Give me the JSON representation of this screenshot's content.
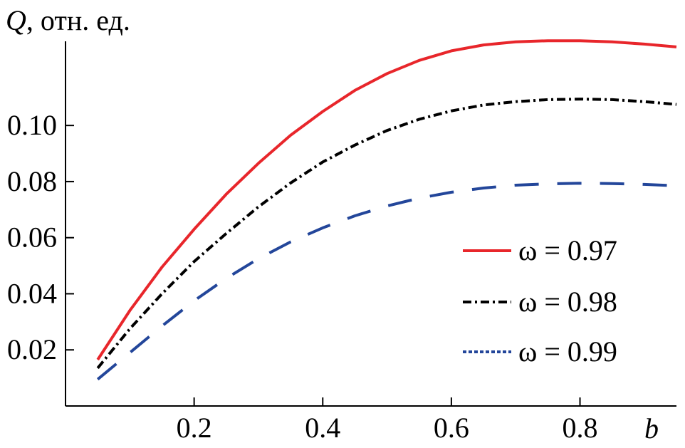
{
  "chart_data": {
    "type": "line",
    "title": "",
    "ylabel_symbol": "Q",
    "ylabel_unit": ", отн. ед.",
    "xlabel": "b",
    "x_ticks": [
      0.2,
      0.4,
      0.6,
      0.8
    ],
    "x_tick_labels": [
      "0.2",
      "0.4",
      "0.6",
      "0.8"
    ],
    "y_ticks": [
      0.02,
      0.04,
      0.06,
      0.08,
      0.1
    ],
    "y_tick_labels": [
      "0.02",
      "0.04",
      "0.06",
      "0.08",
      "0.10"
    ],
    "xlim": [
      0.0,
      0.95
    ],
    "ylim": [
      0.0,
      0.13
    ],
    "grid": false,
    "legend_position": "right",
    "x": [
      0.05,
      0.1,
      0.15,
      0.2,
      0.25,
      0.3,
      0.35,
      0.4,
      0.45,
      0.5,
      0.55,
      0.6,
      0.65,
      0.7,
      0.75,
      0.8,
      0.85,
      0.9,
      0.95
    ],
    "series": [
      {
        "name": "ω = 0.97",
        "color": "#e8262b",
        "style": "solid",
        "values": [
          0.0165,
          0.034,
          0.0495,
          0.063,
          0.0755,
          0.0865,
          0.0965,
          0.105,
          0.1125,
          0.1185,
          0.1232,
          0.1266,
          0.1287,
          0.1298,
          0.1302,
          0.1302,
          0.1298,
          0.129,
          0.128
        ]
      },
      {
        "name": "ω = 0.98",
        "color": "#000000",
        "style": "dashdot",
        "values": [
          0.0135,
          0.0275,
          0.04,
          0.0515,
          0.0615,
          0.071,
          0.0795,
          0.087,
          0.093,
          0.0982,
          0.1022,
          0.1052,
          0.1073,
          0.1085,
          0.1092,
          0.1094,
          0.1092,
          0.1085,
          0.1075
        ]
      },
      {
        "name": "ω = 0.99",
        "color": "#23469a",
        "style": "dashed",
        "legend_style": "dotted",
        "values": [
          0.0095,
          0.019,
          0.0285,
          0.0375,
          0.0455,
          0.0525,
          0.0585,
          0.0635,
          0.0678,
          0.0713,
          0.0741,
          0.0762,
          0.0777,
          0.0787,
          0.0792,
          0.0794,
          0.0793,
          0.079,
          0.0785
        ]
      }
    ]
  }
}
